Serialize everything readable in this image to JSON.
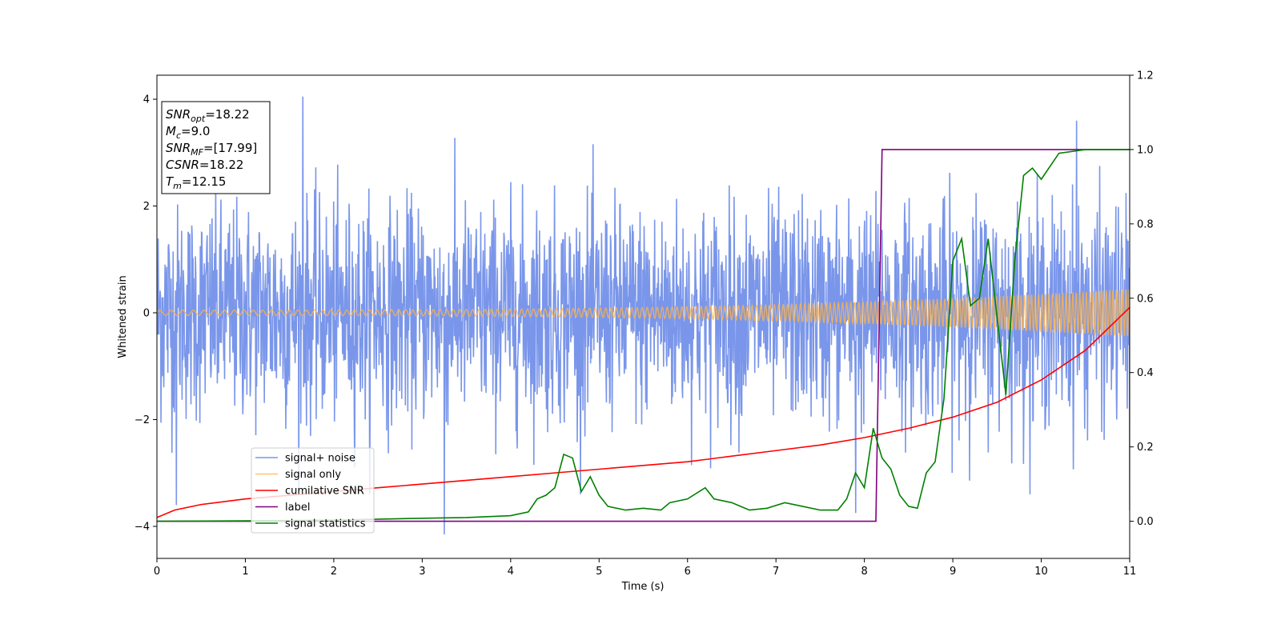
{
  "chart_data": {
    "type": "line",
    "xlabel": "Time (s)",
    "ylabel": "Whitened strain",
    "xlim": [
      0,
      11
    ],
    "ylim": [
      -4.6,
      4.45
    ],
    "y2lim": [
      -0.1,
      1.2
    ],
    "x_ticks": [
      0,
      1,
      2,
      3,
      4,
      5,
      6,
      7,
      8,
      9,
      10,
      11
    ],
    "x_tick_labels": [
      "0",
      "1",
      "2",
      "3",
      "4",
      "5",
      "6",
      "7",
      "8",
      "9",
      "10",
      "11"
    ],
    "y_ticks": [
      -4,
      -2,
      0,
      2,
      4
    ],
    "y_tick_labels": [
      "−4",
      "−2",
      "0",
      "2",
      "4"
    ],
    "y2_ticks": [
      0.0,
      0.2,
      0.4,
      0.6,
      0.8,
      1.0,
      1.2
    ],
    "y2_tick_labels": [
      "0.0",
      "0.2",
      "0.4",
      "0.6",
      "0.8",
      "1.0",
      "1.2"
    ],
    "grid": false,
    "legend_position": "lower-left",
    "series": [
      {
        "name": "signal+ noise",
        "axis": "left",
        "color": "#4169e1",
        "style": "noise",
        "noise_sigma": 1.0,
        "x_range": [
          0,
          11
        ],
        "peaks": [
          [
            1.65,
            4.05
          ],
          [
            3.25,
            -4.15
          ],
          [
            7.9,
            -3.75
          ],
          [
            0.22,
            -3.6
          ],
          [
            10.4,
            3.6
          ],
          [
            11.0,
            -3.7
          ]
        ]
      },
      {
        "name": "signal only",
        "axis": "left",
        "color": "#ffb347",
        "style": "chirp",
        "amplitude_start": 0.05,
        "amplitude_end": 0.45,
        "x_range": [
          0,
          11
        ]
      },
      {
        "name": "cumilative SNR",
        "axis": "right",
        "color": "#ff0000",
        "x": [
          0,
          0.2,
          0.5,
          1,
          1.5,
          2,
          2.5,
          3,
          3.5,
          4,
          4.5,
          5,
          5.5,
          6,
          6.5,
          7,
          7.5,
          8,
          8.5,
          9,
          9.5,
          10,
          10.5,
          11
        ],
        "y": [
          0.01,
          0.03,
          0.045,
          0.06,
          0.07,
          0.08,
          0.09,
          0.1,
          0.11,
          0.12,
          0.13,
          0.14,
          0.15,
          0.16,
          0.175,
          0.19,
          0.205,
          0.225,
          0.25,
          0.28,
          0.32,
          0.38,
          0.46,
          0.575
        ]
      },
      {
        "name": "label",
        "axis": "right",
        "color": "#800080",
        "x": [
          0,
          8.13,
          8.2,
          11
        ],
        "y": [
          0,
          0,
          1,
          1
        ]
      },
      {
        "name": "signal statistics",
        "axis": "right",
        "color": "#008000",
        "x": [
          0,
          1,
          2,
          3,
          3.5,
          4,
          4.2,
          4.3,
          4.4,
          4.5,
          4.6,
          4.7,
          4.8,
          4.9,
          5.0,
          5.1,
          5.3,
          5.5,
          5.7,
          5.8,
          6.0,
          6.2,
          6.3,
          6.5,
          6.7,
          6.9,
          7.1,
          7.3,
          7.5,
          7.7,
          7.8,
          7.9,
          8.0,
          8.1,
          8.2,
          8.3,
          8.4,
          8.5,
          8.6,
          8.7,
          8.8,
          8.9,
          9.0,
          9.1,
          9.2,
          9.3,
          9.4,
          9.5,
          9.6,
          9.7,
          9.8,
          9.9,
          10.0,
          10.2,
          10.5,
          11.0
        ],
        "y": [
          0,
          0.001,
          0.003,
          0.008,
          0.01,
          0.015,
          0.025,
          0.06,
          0.07,
          0.09,
          0.18,
          0.17,
          0.08,
          0.12,
          0.07,
          0.04,
          0.03,
          0.035,
          0.03,
          0.05,
          0.06,
          0.09,
          0.06,
          0.05,
          0.03,
          0.035,
          0.05,
          0.04,
          0.03,
          0.03,
          0.06,
          0.13,
          0.09,
          0.25,
          0.17,
          0.14,
          0.07,
          0.04,
          0.035,
          0.13,
          0.16,
          0.33,
          0.7,
          0.76,
          0.58,
          0.6,
          0.76,
          0.55,
          0.34,
          0.7,
          0.93,
          0.95,
          0.92,
          0.99,
          1.0,
          1.0
        ]
      }
    ]
  },
  "info_box": {
    "lines": [
      {
        "sym": "SNR",
        "sub": "opt",
        "val": "=18.22"
      },
      {
        "sym": "M",
        "sub": "c",
        "val": "=9.0"
      },
      {
        "sym": "SNR",
        "sub": "MF",
        "val": "=[17.99]"
      },
      {
        "sym": "CSNR",
        "sub": "",
        "val": "=18.22"
      },
      {
        "sym": "T",
        "sub": "m",
        "val": "=12.15"
      }
    ]
  }
}
